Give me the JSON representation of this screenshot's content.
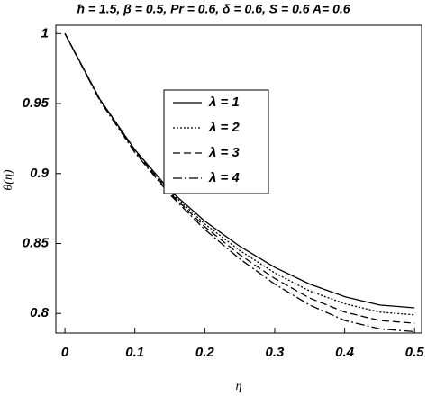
{
  "chart_data": {
    "type": "line",
    "title": "ħ = 1.5,  β = 0.5, Pr = 0.6, δ = 0.6, S = 0.6   A= 0.6",
    "xlabel": "η",
    "ylabel": "θ(η)",
    "x": [
      0,
      0.05,
      0.1,
      0.15,
      0.2,
      0.25,
      0.3,
      0.35,
      0.4,
      0.45,
      0.5
    ],
    "series": [
      {
        "name": "λ = 1",
        "color": "#000000",
        "dash": "none",
        "values": [
          1,
          0.953,
          0.917,
          0.888,
          0.866,
          0.848,
          0.833,
          0.821,
          0.812,
          0.806,
          0.804
        ]
      },
      {
        "name": "λ = 2",
        "color": "#000000",
        "dash": "2,2",
        "values": [
          1,
          0.953,
          0.917,
          0.887,
          0.864,
          0.845,
          0.829,
          0.816,
          0.807,
          0.801,
          0.799
        ]
      },
      {
        "name": "λ = 3",
        "color": "#000000",
        "dash": "8,4",
        "values": [
          1,
          0.953,
          0.916,
          0.886,
          0.862,
          0.842,
          0.825,
          0.811,
          0.801,
          0.795,
          0.793
        ]
      },
      {
        "name": "λ = 4",
        "color": "#000000",
        "dash": "10,3,2,3",
        "values": [
          1,
          0.952,
          0.915,
          0.885,
          0.86,
          0.839,
          0.821,
          0.806,
          0.795,
          0.789,
          0.787
        ]
      }
    ],
    "xlim": [
      -0.013,
      0.51
    ],
    "ylim": [
      0.786,
      1.006
    ],
    "xticks": [
      0,
      0.1,
      0.2,
      0.3,
      0.4,
      0.5
    ],
    "yticks": [
      0.8,
      0.85,
      0.9,
      0.95,
      1
    ]
  }
}
